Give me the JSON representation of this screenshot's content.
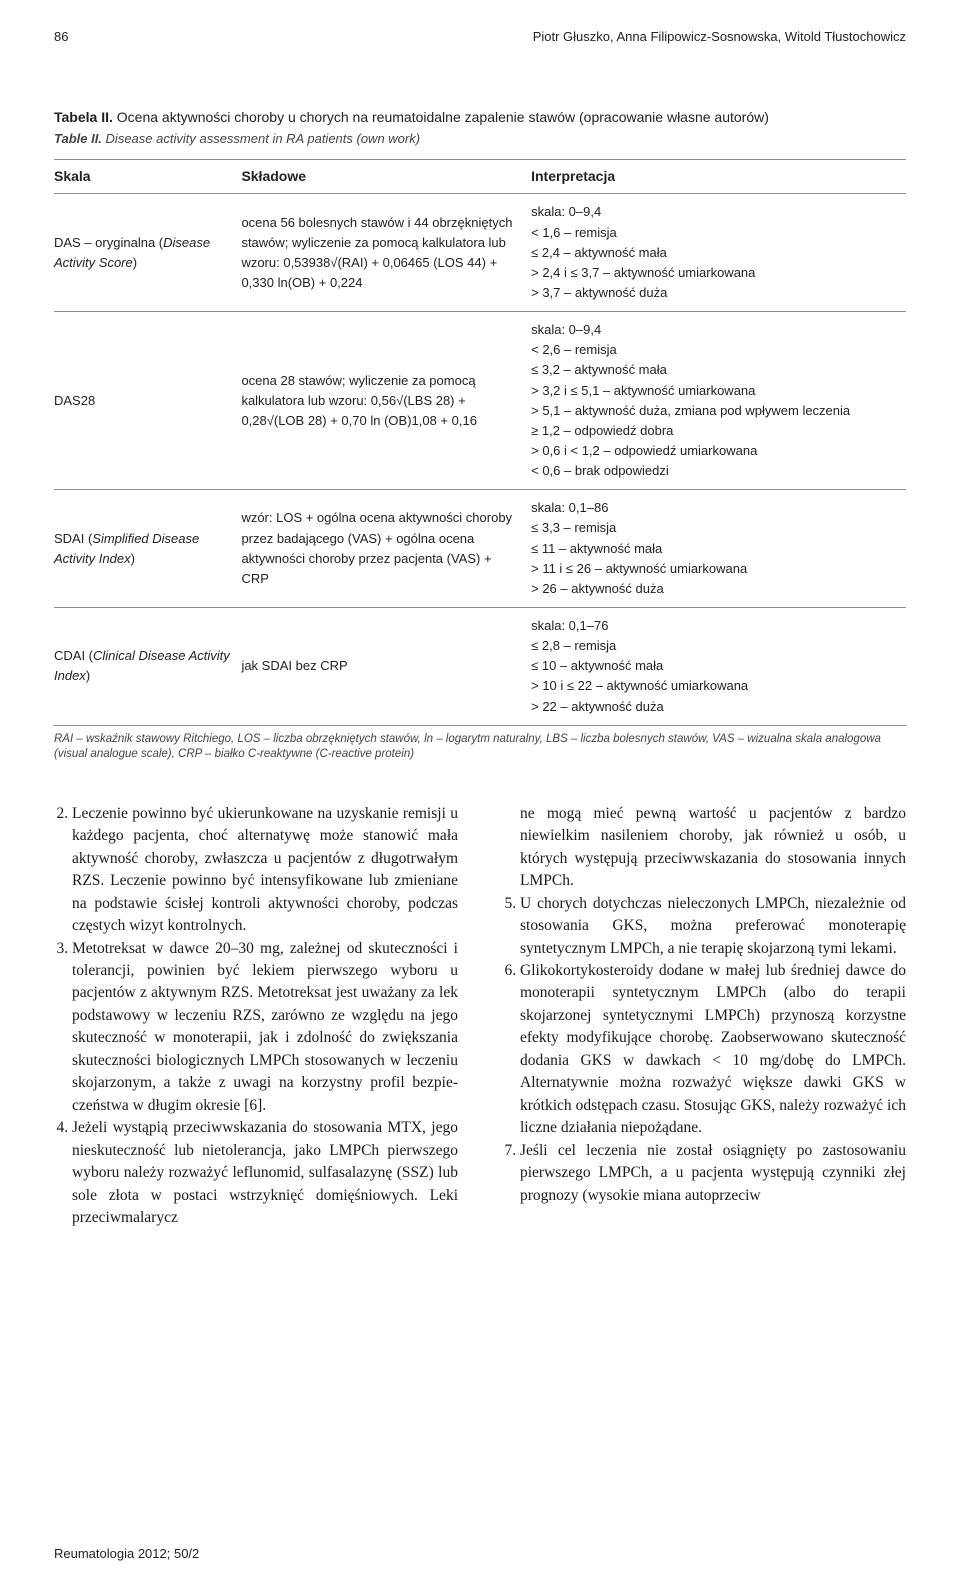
{
  "page": {
    "number": "86",
    "authors": "Piotr Głuszko, Anna Filipowicz-Sosnowska, Witold Tłustochowicz",
    "footer": "Reumatologia 2012; 50/2"
  },
  "table": {
    "title_pl_label": "Tabela II.",
    "title_pl_text": "Ocena aktywności choroby u chorych na reumatoidalne zapalenie stawów (opracowanie własne autorów)",
    "title_en_label": "Table II.",
    "title_en_text": "Disease activity assessment in RA patients (own work)",
    "columns": [
      "Skala",
      "Składowe",
      "Interpretacja"
    ],
    "rows": [
      {
        "scale_html": "DAS – oryginalna (<i>Disease Activity Score</i>)",
        "components": "ocena 56 bolesnych stawów i 44 obrzęk­niętych stawów; wyliczenie za pomocą kalkulatora lub wzoru: 0,53938√(RAI) + 0,06465 (LOS 44) + 0,330 ln(OB) + 0,224",
        "interpretation": [
          "skala: 0–9,4",
          "< 1,6 – remisja",
          "≤ 2,4 – aktywność mała",
          "> 2,4 i ≤ 3,7 – aktywność umiarkowana",
          "> 3,7 – aktywność duża"
        ]
      },
      {
        "scale_html": "DAS28",
        "components": "ocena 28 stawów; wyliczenie za pomocą kalkulatora lub wzoru: 0,56√(LBS 28) + 0,28√(LOB 28) + 0,70 ln (OB)1,08 + 0,16",
        "interpretation": [
          "skala: 0–9,4",
          "< 2,6 – remisja",
          "≤ 3,2 – aktywność mała",
          "> 3,2 i ≤ 5,1 – aktywność umiarkowana",
          "> 5,1 – aktywność duża, zmiana pod wpływem leczenia",
          "≥ 1,2 – odpowiedź dobra",
          "> 0,6 i < 1,2 – odpowiedź umiarkowana",
          "< 0,6 – brak odpowiedzi"
        ]
      },
      {
        "scale_html": "SDAI (<i>Simplified Disease Activity Index</i>)",
        "components": "wzór: LOS + ogólna ocena aktywno­ści choroby przez badającego (VAS) + ogólna ocena aktywności choroby przez pacjenta (VAS) + CRP",
        "interpretation": [
          "skala: 0,1–86",
          "≤ 3,3 – remisja",
          "≤ 11 – aktywność mała",
          "> 11 i ≤ 26 – aktywność umiarkowana",
          "> 26 – aktywność duża"
        ]
      },
      {
        "scale_html": "CDAI (<i>Clinical Disease Activity Index</i>)",
        "components": "jak SDAI bez CRP",
        "interpretation": [
          "skala: 0,1–76",
          "≤ 2,8 – remisja",
          "≤ 10 – aktywność mała",
          "> 10 i ≤ 22 – aktywność umiarkowana",
          "> 22 – aktywność duża"
        ]
      }
    ],
    "footnote": "RAI – wskaźnik stawowy Ritchiego, LOS – liczba obrzękniętych stawów, ln – logarytm naturalny, LBS – liczba bolesnych stawów, VAS – wizualna skala analogowa (visual analogue scale), CRP – białko C-reaktywne (C-reactive protein)"
  },
  "body": {
    "left_start": "2",
    "left_items": [
      "Leczenie powinno być ukierunkowane na uzyskanie re­misji u każdego pacjenta, choć alternatywę może sta­nowić mała aktywność choroby, zwłaszcza u pacjentów z długotrwałym RZS. Leczenie powinno być intensyfiko­wane lub zmieniane na podstawie ścisłej kontroli ak­tywności choroby, podczas częstych wizyt kontrolnych.",
      "Metotreksat w dawce 20–30 mg, zależnej od sku­teczności i tolerancji, powinien być lekiem pierwsze­go wyboru u pacjentów z aktywnym RZS. Metotrek­sat jest uważany za lek podstawowy w leczeniu RZS, zarówno ze względu na jego skuteczność w mono­terapii, jak i zdolność do zwiększania skuteczności biologicznych LMPCh stosowanych w leczeniu skoja­rzonym, a także z uwagi na korzystny profil bezpie­czeństwa w długim okresie [6].",
      "Jeżeli wystąpią przeciwwskazania do stosowania MTX, jego nieskuteczność lub nietolerancja, jako LMPCh pierwszego wyboru należy rozważyć leflu­nomid, sulfasalazynę (SSZ) lub sole złota w postaci wstrzyknięć domięśniowych. Leki przeciwmalarycz­"
    ],
    "right_partial": "ne mogą mieć pewną wartość u pacjentów z bardzo niewielkim nasileniem choroby, jak również u osób, u których występują przeciwwskazania do stosowa­nia innych LMPCh.",
    "right_start": "5",
    "right_items": [
      "U chorych dotychczas nieleczonych LMPCh, niezależ­nie od stosowania GKS, można preferować monote­rapię syntetycznym LMPCh, a nie terapię skojarzoną tymi lekami.",
      "Glikokortykosteroidy dodane w małej lub średniej dawce do monoterapii syntetycznym LMPCh (albo do terapii skojarzonej syntetycznymi LMPCh) przy­noszą korzystne efekty modyfikujące chorobę. Za­obserwowano skuteczność dodania GKS w dawkach < 10 mg/dobę do LMPCh. Alternatywnie można roz­ważyć większe dawki GKS w krótkich odstępach cza­su. Stosując GKS, należy rozważyć ich liczne działa­nia niepożądane.",
      "Jeśli cel leczenia nie został osiągnięty po zastoso­waniu pierwszego LMPCh, a u pacjenta występują czynniki złej prognozy (wysokie miana autoprzeciw­"
    ]
  }
}
